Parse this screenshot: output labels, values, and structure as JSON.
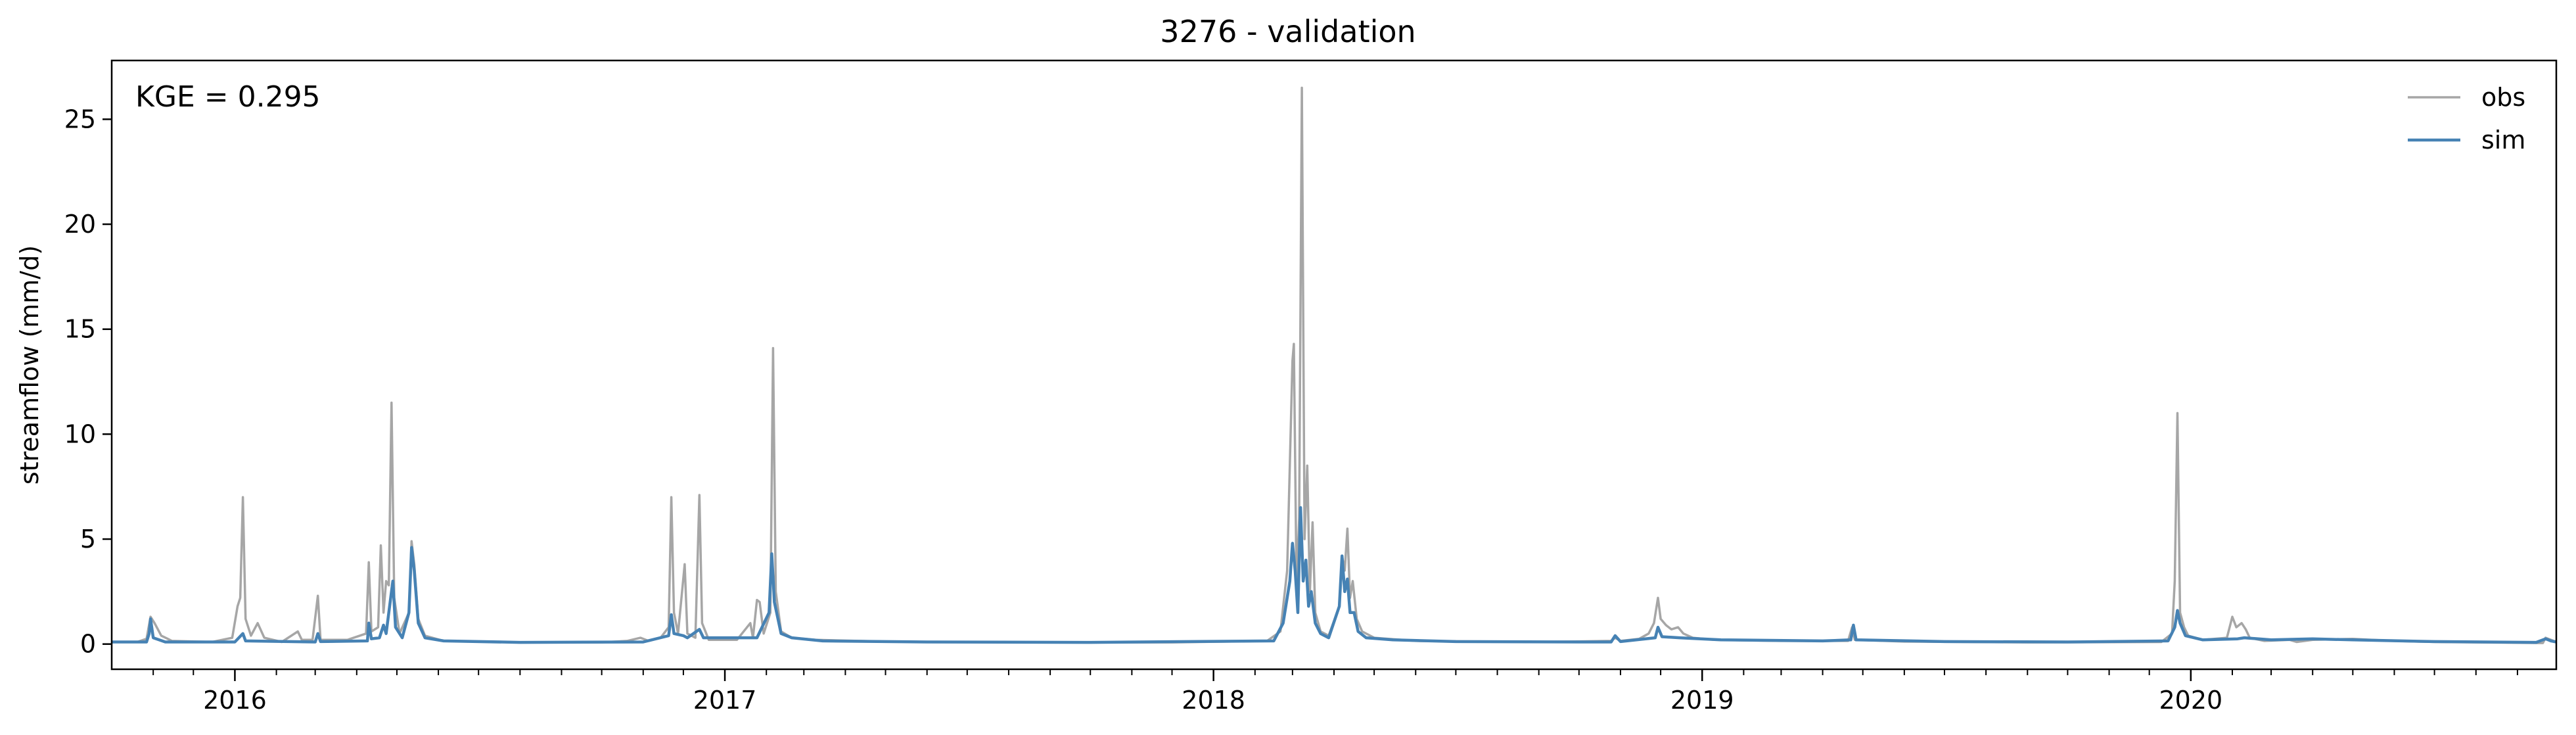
{
  "chart_data": {
    "type": "line",
    "title": "3276 - validation",
    "xlabel": "",
    "ylabel": "streamflow (mm/d)",
    "annotation": "KGE = 0.295",
    "xlim": [
      "2015-10-01",
      "2020-09-30"
    ],
    "ylim": [
      -1.2,
      27.8
    ],
    "yticks": [
      0,
      5,
      10,
      15,
      20,
      25
    ],
    "xticks": [
      {
        "date": "2016-01-01",
        "label": "2016"
      },
      {
        "date": "2017-01-01",
        "label": "2017"
      },
      {
        "date": "2018-01-01",
        "label": "2018"
      },
      {
        "date": "2019-01-01",
        "label": "2019"
      },
      {
        "date": "2020-01-01",
        "label": "2020"
      }
    ],
    "minor_xticks": [
      "2015-11-01",
      "2015-12-01",
      "2016-02-01",
      "2016-03-01",
      "2016-04-01",
      "2016-05-01",
      "2016-06-01",
      "2016-07-01",
      "2016-08-01",
      "2016-09-01",
      "2016-10-01",
      "2016-11-01",
      "2016-12-01",
      "2017-02-01",
      "2017-03-01",
      "2017-04-01",
      "2017-05-01",
      "2017-06-01",
      "2017-07-01",
      "2017-08-01",
      "2017-09-01",
      "2017-10-01",
      "2017-11-01",
      "2017-12-01",
      "2018-02-01",
      "2018-03-01",
      "2018-04-01",
      "2018-05-01",
      "2018-06-01",
      "2018-07-01",
      "2018-08-01",
      "2018-09-01",
      "2018-10-01",
      "2018-11-01",
      "2018-12-01",
      "2019-02-01",
      "2019-03-01",
      "2019-04-01",
      "2019-05-01",
      "2019-06-01",
      "2019-07-01",
      "2019-08-01",
      "2019-09-01",
      "2019-10-01",
      "2019-11-01",
      "2019-12-01",
      "2020-02-01",
      "2020-03-01",
      "2020-04-01",
      "2020-05-01",
      "2020-06-01",
      "2020-07-01",
      "2020-08-01",
      "2020-09-01"
    ],
    "grid": false,
    "legend": "top-right",
    "series": [
      {
        "name": "obs",
        "color": "#a6a6a6",
        "points": [
          [
            "2015-10-01",
            0.1
          ],
          [
            "2015-10-20",
            0.1
          ],
          [
            "2015-10-27",
            0.25
          ],
          [
            "2015-10-30",
            1.3
          ],
          [
            "2015-11-02",
            1.0
          ],
          [
            "2015-11-07",
            0.4
          ],
          [
            "2015-11-15",
            0.15
          ],
          [
            "2015-12-15",
            0.1
          ],
          [
            "2015-12-30",
            0.3
          ],
          [
            "2016-01-03",
            1.8
          ],
          [
            "2016-01-05",
            2.2
          ],
          [
            "2016-01-07",
            7.0
          ],
          [
            "2016-01-09",
            1.2
          ],
          [
            "2016-01-13",
            0.4
          ],
          [
            "2016-01-18",
            1.0
          ],
          [
            "2016-01-23",
            0.3
          ],
          [
            "2016-02-05",
            0.1
          ],
          [
            "2016-02-17",
            0.6
          ],
          [
            "2016-02-20",
            0.2
          ],
          [
            "2016-02-28",
            0.2
          ],
          [
            "2016-03-03",
            2.3
          ],
          [
            "2016-03-05",
            0.2
          ],
          [
            "2016-03-25",
            0.2
          ],
          [
            "2016-04-08",
            0.5
          ],
          [
            "2016-04-10",
            3.9
          ],
          [
            "2016-04-12",
            0.6
          ],
          [
            "2016-04-17",
            0.8
          ],
          [
            "2016-04-19",
            4.7
          ],
          [
            "2016-04-21",
            1.5
          ],
          [
            "2016-04-23",
            3.0
          ],
          [
            "2016-04-25",
            2.8
          ],
          [
            "2016-04-27",
            11.5
          ],
          [
            "2016-04-29",
            2.2
          ],
          [
            "2016-05-03",
            0.5
          ],
          [
            "2016-05-10",
            1.5
          ],
          [
            "2016-05-12",
            4.9
          ],
          [
            "2016-05-14",
            3.8
          ],
          [
            "2016-05-17",
            1.2
          ],
          [
            "2016-05-22",
            0.4
          ],
          [
            "2016-06-05",
            0.15
          ],
          [
            "2016-08-01",
            0.08
          ],
          [
            "2016-10-01",
            0.08
          ],
          [
            "2016-10-20",
            0.15
          ],
          [
            "2016-10-30",
            0.3
          ],
          [
            "2016-11-05",
            0.15
          ],
          [
            "2016-11-14",
            0.3
          ],
          [
            "2016-11-20",
            0.8
          ],
          [
            "2016-11-22",
            7.0
          ],
          [
            "2016-11-24",
            1.5
          ],
          [
            "2016-11-27",
            0.5
          ],
          [
            "2016-12-02",
            3.8
          ],
          [
            "2016-12-04",
            0.5
          ],
          [
            "2016-12-10",
            0.3
          ],
          [
            "2016-12-13",
            7.1
          ],
          [
            "2016-12-15",
            1.0
          ],
          [
            "2016-12-20",
            0.2
          ],
          [
            "2017-01-10",
            0.2
          ],
          [
            "2017-01-20",
            1.0
          ],
          [
            "2017-01-22",
            0.3
          ],
          [
            "2017-01-25",
            2.1
          ],
          [
            "2017-01-27",
            2.0
          ],
          [
            "2017-01-30",
            0.5
          ],
          [
            "2017-02-04",
            1.5
          ],
          [
            "2017-02-06",
            14.1
          ],
          [
            "2017-02-08",
            2.5
          ],
          [
            "2017-02-12",
            0.6
          ],
          [
            "2017-02-20",
            0.3
          ],
          [
            "2017-03-10",
            0.2
          ],
          [
            "2017-05-01",
            0.12
          ],
          [
            "2017-08-01",
            0.08
          ],
          [
            "2017-12-01",
            0.08
          ],
          [
            "2018-02-10",
            0.15
          ],
          [
            "2018-02-20",
            0.6
          ],
          [
            "2018-02-25",
            3.5
          ],
          [
            "2018-03-01",
            13.5
          ],
          [
            "2018-03-02",
            14.3
          ],
          [
            "2018-03-04",
            2.8
          ],
          [
            "2018-03-06",
            6.0
          ],
          [
            "2018-03-08",
            26.5
          ],
          [
            "2018-03-10",
            5.0
          ],
          [
            "2018-03-12",
            8.5
          ],
          [
            "2018-03-14",
            2.5
          ],
          [
            "2018-03-16",
            5.8
          ],
          [
            "2018-03-18",
            1.5
          ],
          [
            "2018-03-22",
            0.6
          ],
          [
            "2018-03-28",
            0.4
          ],
          [
            "2018-04-05",
            1.8
          ],
          [
            "2018-04-07",
            4.2
          ],
          [
            "2018-04-09",
            3.5
          ],
          [
            "2018-04-11",
            5.5
          ],
          [
            "2018-04-13",
            2.2
          ],
          [
            "2018-04-15",
            3.0
          ],
          [
            "2018-04-18",
            1.2
          ],
          [
            "2018-04-22",
            0.6
          ],
          [
            "2018-05-01",
            0.3
          ],
          [
            "2018-06-01",
            0.15
          ],
          [
            "2018-09-01",
            0.1
          ],
          [
            "2018-10-25",
            0.15
          ],
          [
            "2018-10-28",
            0.3
          ],
          [
            "2018-11-01",
            0.15
          ],
          [
            "2018-11-15",
            0.25
          ],
          [
            "2018-11-22",
            0.5
          ],
          [
            "2018-11-26",
            1.0
          ],
          [
            "2018-11-29",
            2.2
          ],
          [
            "2018-12-01",
            1.2
          ],
          [
            "2018-12-05",
            0.9
          ],
          [
            "2018-12-09",
            0.7
          ],
          [
            "2018-12-14",
            0.8
          ],
          [
            "2018-12-18",
            0.5
          ],
          [
            "2018-12-25",
            0.3
          ],
          [
            "2019-01-10",
            0.2
          ],
          [
            "2019-03-01",
            0.15
          ],
          [
            "2019-04-20",
            0.15
          ],
          [
            "2019-04-23",
            0.8
          ],
          [
            "2019-04-25",
            0.2
          ],
          [
            "2019-06-01",
            0.12
          ],
          [
            "2019-09-01",
            0.08
          ],
          [
            "2019-12-10",
            0.1
          ],
          [
            "2019-12-18",
            0.5
          ],
          [
            "2019-12-20",
            3.0
          ],
          [
            "2019-12-22",
            11.0
          ],
          [
            "2019-12-24",
            1.5
          ],
          [
            "2019-12-27",
            0.8
          ],
          [
            "2019-12-30",
            0.4
          ],
          [
            "2020-01-10",
            0.2
          ],
          [
            "2020-01-28",
            0.3
          ],
          [
            "2020-02-01",
            1.3
          ],
          [
            "2020-02-04",
            0.8
          ],
          [
            "2020-02-08",
            1.0
          ],
          [
            "2020-02-11",
            0.7
          ],
          [
            "2020-02-14",
            0.3
          ],
          [
            "2020-02-25",
            0.15
          ],
          [
            "2020-03-15",
            0.2
          ],
          [
            "2020-03-20",
            0.1
          ],
          [
            "2020-04-01",
            0.2
          ],
          [
            "2020-05-01",
            0.25
          ],
          [
            "2020-05-15",
            0.2
          ],
          [
            "2020-06-01",
            0.15
          ],
          [
            "2020-07-01",
            0.1
          ],
          [
            "2020-08-01",
            0.08
          ],
          [
            "2020-09-20",
            0.05
          ],
          [
            "2020-09-22",
            0.3
          ],
          [
            "2020-09-26",
            0.2
          ],
          [
            "2020-09-30",
            0.1
          ]
        ]
      },
      {
        "name": "sim",
        "color": "#4682b4",
        "points": [
          [
            "2015-10-01",
            0.1
          ],
          [
            "2015-10-27",
            0.1
          ],
          [
            "2015-10-29",
            0.5
          ],
          [
            "2015-10-30",
            1.2
          ],
          [
            "2015-11-01",
            0.3
          ],
          [
            "2015-11-10",
            0.1
          ],
          [
            "2016-01-01",
            0.1
          ],
          [
            "2016-01-07",
            0.5
          ],
          [
            "2016-01-09",
            0.15
          ],
          [
            "2016-03-01",
            0.1
          ],
          [
            "2016-03-03",
            0.5
          ],
          [
            "2016-03-05",
            0.12
          ],
          [
            "2016-04-09",
            0.15
          ],
          [
            "2016-04-10",
            1.0
          ],
          [
            "2016-04-12",
            0.25
          ],
          [
            "2016-04-18",
            0.3
          ],
          [
            "2016-04-21",
            0.9
          ],
          [
            "2016-04-23",
            0.5
          ],
          [
            "2016-04-26",
            2.0
          ],
          [
            "2016-04-28",
            3.0
          ],
          [
            "2016-04-30",
            0.8
          ],
          [
            "2016-05-05",
            0.3
          ],
          [
            "2016-05-10",
            1.5
          ],
          [
            "2016-05-12",
            4.6
          ],
          [
            "2016-05-14",
            3.5
          ],
          [
            "2016-05-17",
            1.0
          ],
          [
            "2016-05-22",
            0.3
          ],
          [
            "2016-06-05",
            0.15
          ],
          [
            "2016-08-01",
            0.08
          ],
          [
            "2016-11-01",
            0.1
          ],
          [
            "2016-11-20",
            0.4
          ],
          [
            "2016-11-22",
            1.4
          ],
          [
            "2016-11-24",
            0.5
          ],
          [
            "2016-12-01",
            0.4
          ],
          [
            "2016-12-04",
            0.3
          ],
          [
            "2016-12-13",
            0.7
          ],
          [
            "2016-12-16",
            0.3
          ],
          [
            "2017-01-25",
            0.3
          ],
          [
            "2017-02-03",
            1.5
          ],
          [
            "2017-02-05",
            4.3
          ],
          [
            "2017-02-07",
            2.0
          ],
          [
            "2017-02-12",
            0.5
          ],
          [
            "2017-02-20",
            0.3
          ],
          [
            "2017-03-15",
            0.15
          ],
          [
            "2017-06-01",
            0.1
          ],
          [
            "2017-10-01",
            0.08
          ],
          [
            "2018-02-15",
            0.15
          ],
          [
            "2018-02-22",
            1.0
          ],
          [
            "2018-02-27",
            3.0
          ],
          [
            "2018-03-01",
            4.8
          ],
          [
            "2018-03-03",
            3.5
          ],
          [
            "2018-03-05",
            1.5
          ],
          [
            "2018-03-07",
            6.5
          ],
          [
            "2018-03-09",
            3.0
          ],
          [
            "2018-03-11",
            4.0
          ],
          [
            "2018-03-13",
            1.8
          ],
          [
            "2018-03-15",
            2.5
          ],
          [
            "2018-03-18",
            1.0
          ],
          [
            "2018-03-22",
            0.5
          ],
          [
            "2018-03-28",
            0.3
          ],
          [
            "2018-04-05",
            1.8
          ],
          [
            "2018-04-07",
            4.2
          ],
          [
            "2018-04-09",
            2.5
          ],
          [
            "2018-04-11",
            3.1
          ],
          [
            "2018-04-13",
            1.5
          ],
          [
            "2018-04-16",
            1.5
          ],
          [
            "2018-04-19",
            0.6
          ],
          [
            "2018-04-25",
            0.3
          ],
          [
            "2018-05-15",
            0.2
          ],
          [
            "2018-07-01",
            0.12
          ],
          [
            "2018-10-01",
            0.1
          ],
          [
            "2018-10-25",
            0.1
          ],
          [
            "2018-10-28",
            0.4
          ],
          [
            "2018-11-01",
            0.12
          ],
          [
            "2018-11-27",
            0.3
          ],
          [
            "2018-11-29",
            0.8
          ],
          [
            "2018-12-02",
            0.35
          ],
          [
            "2018-12-15",
            0.3
          ],
          [
            "2019-01-15",
            0.2
          ],
          [
            "2019-04-01",
            0.15
          ],
          [
            "2019-04-22",
            0.2
          ],
          [
            "2019-04-24",
            0.9
          ],
          [
            "2019-04-26",
            0.2
          ],
          [
            "2019-07-01",
            0.12
          ],
          [
            "2019-10-01",
            0.1
          ],
          [
            "2019-12-15",
            0.15
          ],
          [
            "2019-12-20",
            0.8
          ],
          [
            "2019-12-22",
            1.6
          ],
          [
            "2019-12-24",
            1.0
          ],
          [
            "2019-12-28",
            0.4
          ],
          [
            "2020-01-10",
            0.2
          ],
          [
            "2020-02-05",
            0.25
          ],
          [
            "2020-02-10",
            0.3
          ],
          [
            "2020-03-01",
            0.2
          ],
          [
            "2020-04-01",
            0.25
          ],
          [
            "2020-05-01",
            0.2
          ],
          [
            "2020-07-01",
            0.12
          ],
          [
            "2020-09-15",
            0.08
          ],
          [
            "2020-09-22",
            0.25
          ],
          [
            "2020-09-26",
            0.15
          ],
          [
            "2020-09-30",
            0.1
          ]
        ]
      }
    ]
  }
}
